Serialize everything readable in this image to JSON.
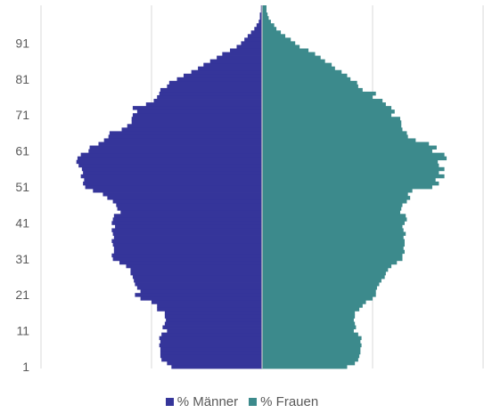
{
  "chart_data": {
    "type": "bar",
    "orientation": "horizontal-population-pyramid",
    "title": "",
    "xlabel": "",
    "ylabel": "",
    "y_tick_labels": [
      "1",
      "11",
      "21",
      "31",
      "41",
      "51",
      "61",
      "71",
      "81",
      "91"
    ],
    "x_range_percent": [
      -2.0,
      2.0
    ],
    "x_gridlines_percent": [
      -2.0,
      -1.0,
      0,
      1.0,
      2.0
    ],
    "colors": {
      "maenner": "#35359A",
      "frauen": "#3C8A8C",
      "center_line": "#C8C8C8",
      "grid": "#D9D9D9"
    },
    "legend_position": "bottom",
    "series": [
      {
        "name": "% Männer",
        "side": "left",
        "ages_from": 1,
        "values": [
          0.82,
          0.86,
          0.91,
          0.92,
          0.92,
          0.92,
          0.93,
          0.92,
          0.93,
          0.91,
          0.86,
          0.9,
          0.88,
          0.87,
          0.88,
          0.88,
          0.95,
          0.95,
          1.0,
          1.1,
          1.15,
          1.1,
          1.13,
          1.15,
          1.16,
          1.17,
          1.19,
          1.19,
          1.23,
          1.29,
          1.35,
          1.36,
          1.34,
          1.34,
          1.35,
          1.36,
          1.34,
          1.35,
          1.36,
          1.33,
          1.36,
          1.35,
          1.34,
          1.28,
          1.31,
          1.32,
          1.35,
          1.4,
          1.44,
          1.53,
          1.6,
          1.62,
          1.61,
          1.64,
          1.62,
          1.63,
          1.66,
          1.68,
          1.67,
          1.64,
          1.57,
          1.56,
          1.48,
          1.43,
          1.39,
          1.38,
          1.27,
          1.22,
          1.18,
          1.18,
          1.17,
          1.13,
          1.17,
          1.05,
          0.98,
          0.95,
          0.93,
          0.92,
          0.86,
          0.84,
          0.77,
          0.71,
          0.64,
          0.58,
          0.53,
          0.47,
          0.41,
          0.36,
          0.29,
          0.23,
          0.19,
          0.16,
          0.13,
          0.1,
          0.07,
          0.05,
          0.03,
          0.02,
          0.02,
          0.01,
          0.01
        ]
      },
      {
        "name": "% Frauen",
        "side": "right",
        "ages_from": 1,
        "values": [
          0.77,
          0.84,
          0.87,
          0.88,
          0.89,
          0.89,
          0.9,
          0.89,
          0.9,
          0.87,
          0.83,
          0.85,
          0.84,
          0.83,
          0.84,
          0.84,
          0.88,
          0.91,
          0.94,
          1.0,
          1.03,
          1.03,
          1.04,
          1.06,
          1.08,
          1.11,
          1.12,
          1.14,
          1.17,
          1.22,
          1.27,
          1.27,
          1.29,
          1.28,
          1.29,
          1.29,
          1.28,
          1.3,
          1.28,
          1.27,
          1.29,
          1.31,
          1.3,
          1.25,
          1.26,
          1.27,
          1.31,
          1.34,
          1.32,
          1.36,
          1.54,
          1.6,
          1.57,
          1.65,
          1.6,
          1.65,
          1.6,
          1.59,
          1.67,
          1.65,
          1.54,
          1.58,
          1.51,
          1.39,
          1.32,
          1.31,
          1.27,
          1.26,
          1.26,
          1.25,
          1.17,
          1.2,
          1.17,
          1.12,
          1.09,
          1.0,
          1.03,
          0.91,
          0.87,
          0.86,
          0.8,
          0.77,
          0.72,
          0.66,
          0.63,
          0.57,
          0.53,
          0.48,
          0.42,
          0.34,
          0.3,
          0.26,
          0.21,
          0.17,
          0.13,
          0.11,
          0.08,
          0.06,
          0.05,
          0.04,
          0.04
        ]
      }
    ]
  },
  "legend": [
    {
      "label": "% Männer",
      "color": "#35359A"
    },
    {
      "label": "% Frauen",
      "color": "#3C8A8C"
    }
  ]
}
